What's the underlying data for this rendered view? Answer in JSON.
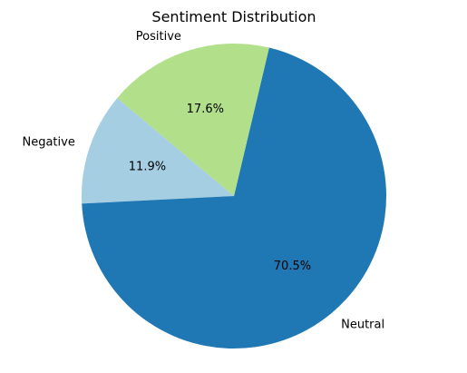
{
  "chart_data": {
    "type": "pie",
    "title": "Sentiment Distribution",
    "slices": [
      {
        "label": "Negative",
        "percent": 11.9,
        "percent_label": "11.9%",
        "color": "#a6cee3"
      },
      {
        "label": "Neutral",
        "percent": 70.5,
        "percent_label": "70.5%",
        "color": "#1f78b4"
      },
      {
        "label": "Positive",
        "percent": 17.6,
        "percent_label": "17.6%",
        "color": "#b2df8a"
      }
    ],
    "start_angle_deg": 140,
    "direction": "counterclockwise",
    "legend": "none"
  }
}
